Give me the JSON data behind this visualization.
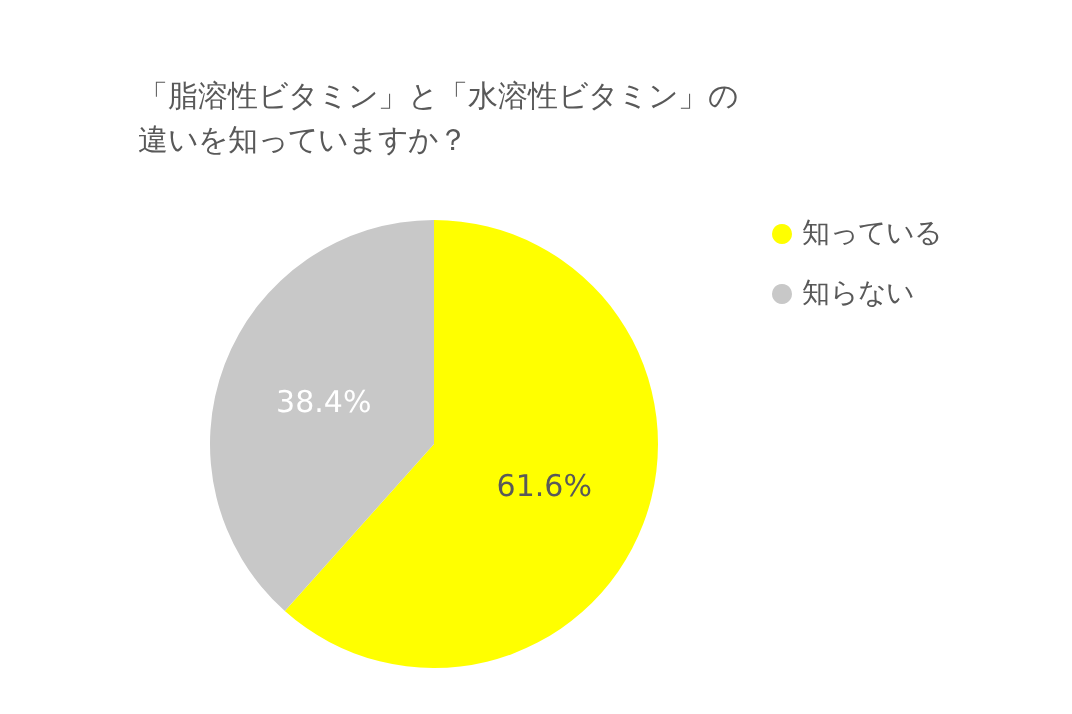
{
  "chart_data": {
    "type": "pie",
    "title": "「脂溶性ビタミン」と「水溶性ビタミン」の違いを知っていますか？",
    "categories": [
      "知っている",
      "知らない"
    ],
    "values": [
      61.6,
      38.4
    ],
    "colors": [
      "#ffff00",
      "#c8c8c8"
    ],
    "value_labels": [
      "61.6%",
      "38.4%"
    ],
    "legend": "right"
  }
}
